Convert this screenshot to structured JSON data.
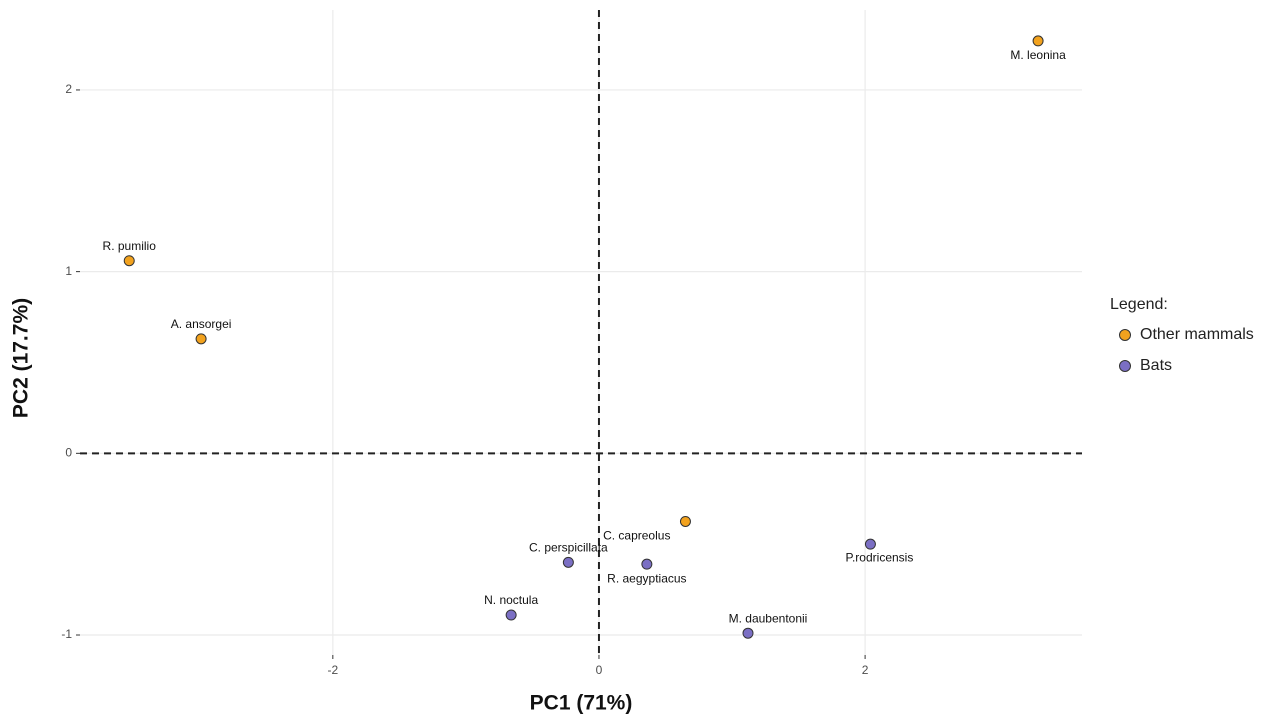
{
  "chart_data": {
    "type": "scatter",
    "x_label": "PC1 (71%)",
    "y_label": "PC2 (17.7%)",
    "xlim": [
      -3.9,
      3.63
    ],
    "ylim": [
      -1.11,
      2.44
    ],
    "xticks": [
      -2,
      0,
      2
    ],
    "yticks": [
      -1,
      0,
      1,
      2
    ],
    "grid": true,
    "hline": 0,
    "vline": 0,
    "legend_title": "Legend:",
    "legend_position": "right",
    "series": [
      {
        "name": "Other mammals",
        "color": "#f2a21e",
        "x": [
          3.3,
          -3.53,
          -2.99,
          0.65
        ],
        "y": [
          2.27,
          1.06,
          0.63,
          -0.375
        ],
        "labels": [
          "M. leonina",
          "R. pumilio",
          "A. ansorgei",
          "C. capreolus"
        ]
      },
      {
        "name": "Bats",
        "color": "#7b6fc4",
        "x": [
          -0.23,
          0.36,
          2.04,
          -0.66,
          1.12
        ],
        "y": [
          -0.6,
          -0.61,
          -0.5,
          -0.89,
          -0.99
        ],
        "labels": [
          "C. perspicillata",
          "R. aegyptiacus",
          "P.rodricensis",
          "N. noctula",
          "M. daubentonii"
        ]
      }
    ]
  }
}
